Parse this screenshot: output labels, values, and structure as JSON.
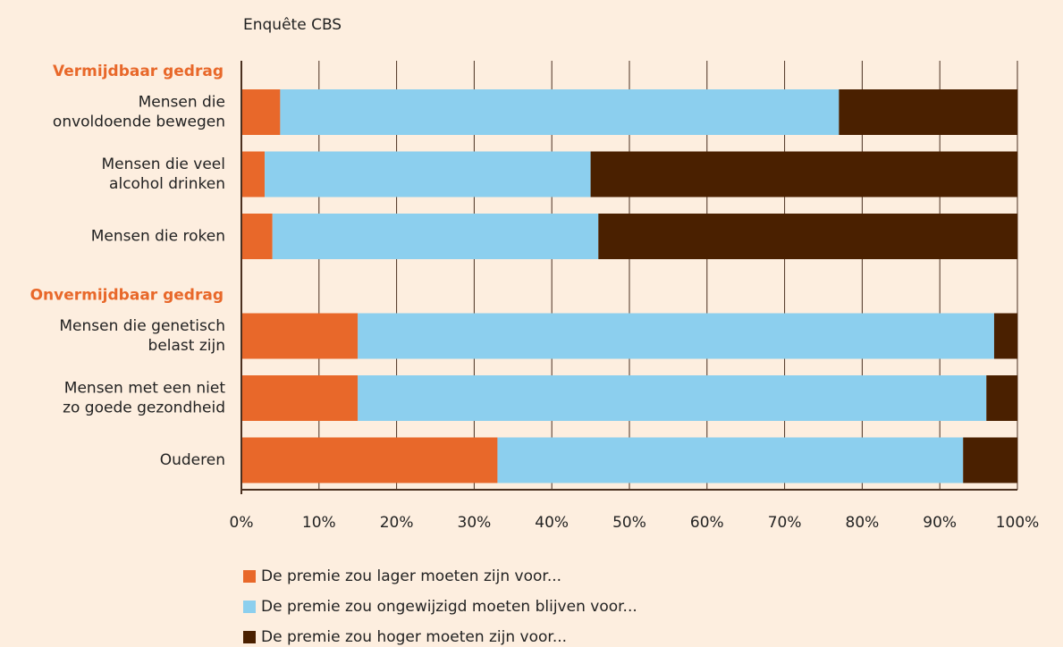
{
  "chart_data": {
    "type": "stacked-bar-horizontal",
    "title": "Enquête CBS",
    "groups": [
      {
        "label": "Vermijdbaar gedrag",
        "categories": [
          [
            "Mensen die",
            "onvoldoende bewegen"
          ],
          [
            "Mensen die veel",
            "alcohol drinken"
          ],
          [
            "Mensen die roken"
          ]
        ]
      },
      {
        "label": "Onvermijdbaar gedrag",
        "categories": [
          [
            "Mensen die genetisch",
            "belast zijn"
          ],
          [
            "Mensen met een niet",
            "zo goede gezondheid"
          ],
          [
            "Ouderen"
          ]
        ]
      }
    ],
    "series": [
      {
        "name": "De premie zou lager moeten zijn voor...",
        "color": "#e8682a",
        "values": [
          5,
          3,
          4,
          15,
          15,
          33
        ]
      },
      {
        "name": "De premie zou ongewijzigd moeten blijven voor...",
        "color": "#8ccfee",
        "values": [
          72,
          42,
          42,
          82,
          81,
          60
        ]
      },
      {
        "name": "De premie zou hoger moeten zijn voor...",
        "color": "#4a2000",
        "values": [
          23,
          55,
          54,
          3,
          4,
          7
        ]
      }
    ],
    "xlim": [
      0,
      100
    ],
    "xticks": [
      {
        "value": 0,
        "label": "0%"
      },
      {
        "value": 10,
        "label": "10%"
      },
      {
        "value": 20,
        "label": "20%"
      },
      {
        "value": 30,
        "label": "30%"
      },
      {
        "value": 40,
        "label": "40%"
      },
      {
        "value": 50,
        "label": "50%"
      },
      {
        "value": 60,
        "label": "60%"
      },
      {
        "value": 70,
        "label": "70%"
      },
      {
        "value": 80,
        "label": "80%"
      },
      {
        "value": 90,
        "label": "90%"
      },
      {
        "value": 100,
        "label": "100%"
      }
    ],
    "grid": true
  }
}
